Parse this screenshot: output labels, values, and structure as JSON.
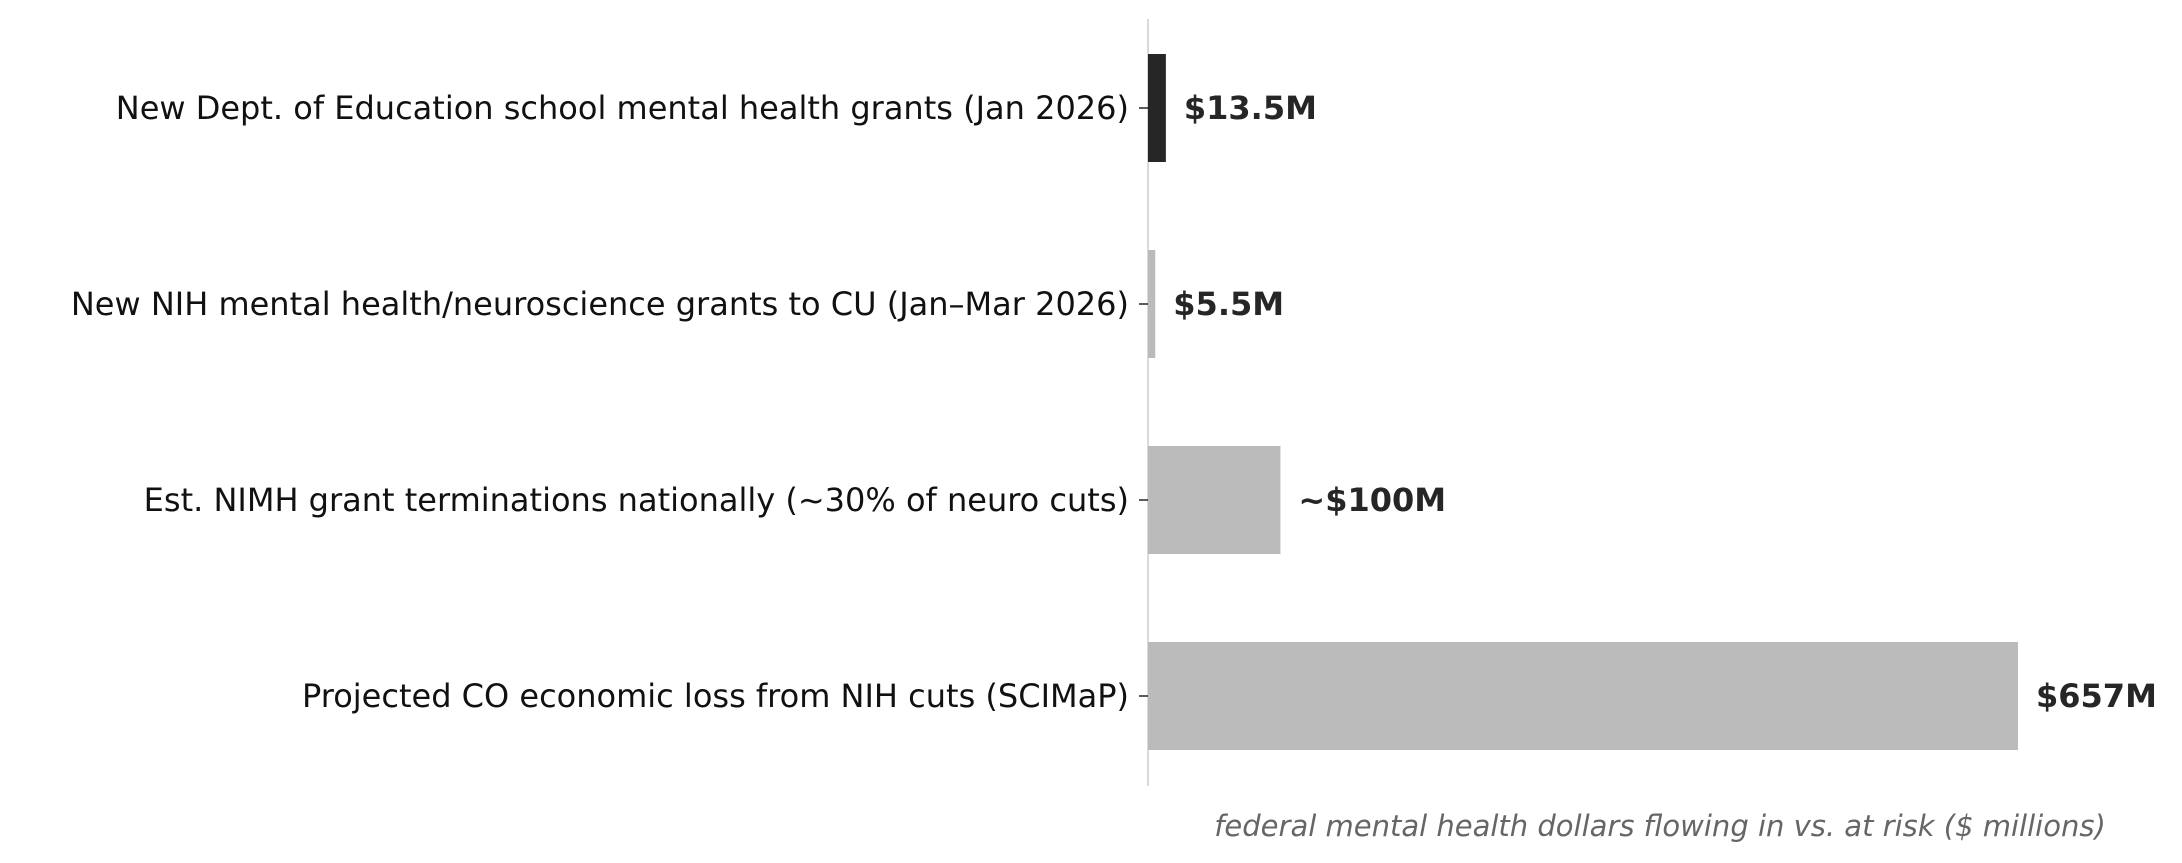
{
  "chart_data": {
    "type": "bar",
    "orientation": "horizontal",
    "categories": [
      "New Dept. of Education school mental health grants (Jan 2026)",
      "New NIH mental health/neuroscience grants to CU (Jan–Mar 2026)",
      "Est. NIMH grant terminations nationally (~30% of neuro cuts)",
      "Projected CO economic loss from NIH cuts (SCIMaP)"
    ],
    "values": [
      13.5,
      5.5,
      100,
      657
    ],
    "value_labels": [
      "$13.5M",
      "$5.5M",
      "~$100M",
      "$657M"
    ],
    "bar_colors": [
      "#262626",
      "#bbbbbb",
      "#bbbbbb",
      "#bbbbbb"
    ],
    "label_color": "#262626",
    "xlabel": "federal mental health dollars flowing in vs. at risk ($ millions)",
    "xlabel_color": "#666666",
    "xlim": [
      0,
      657
    ],
    "grid": false,
    "legend": "none"
  }
}
